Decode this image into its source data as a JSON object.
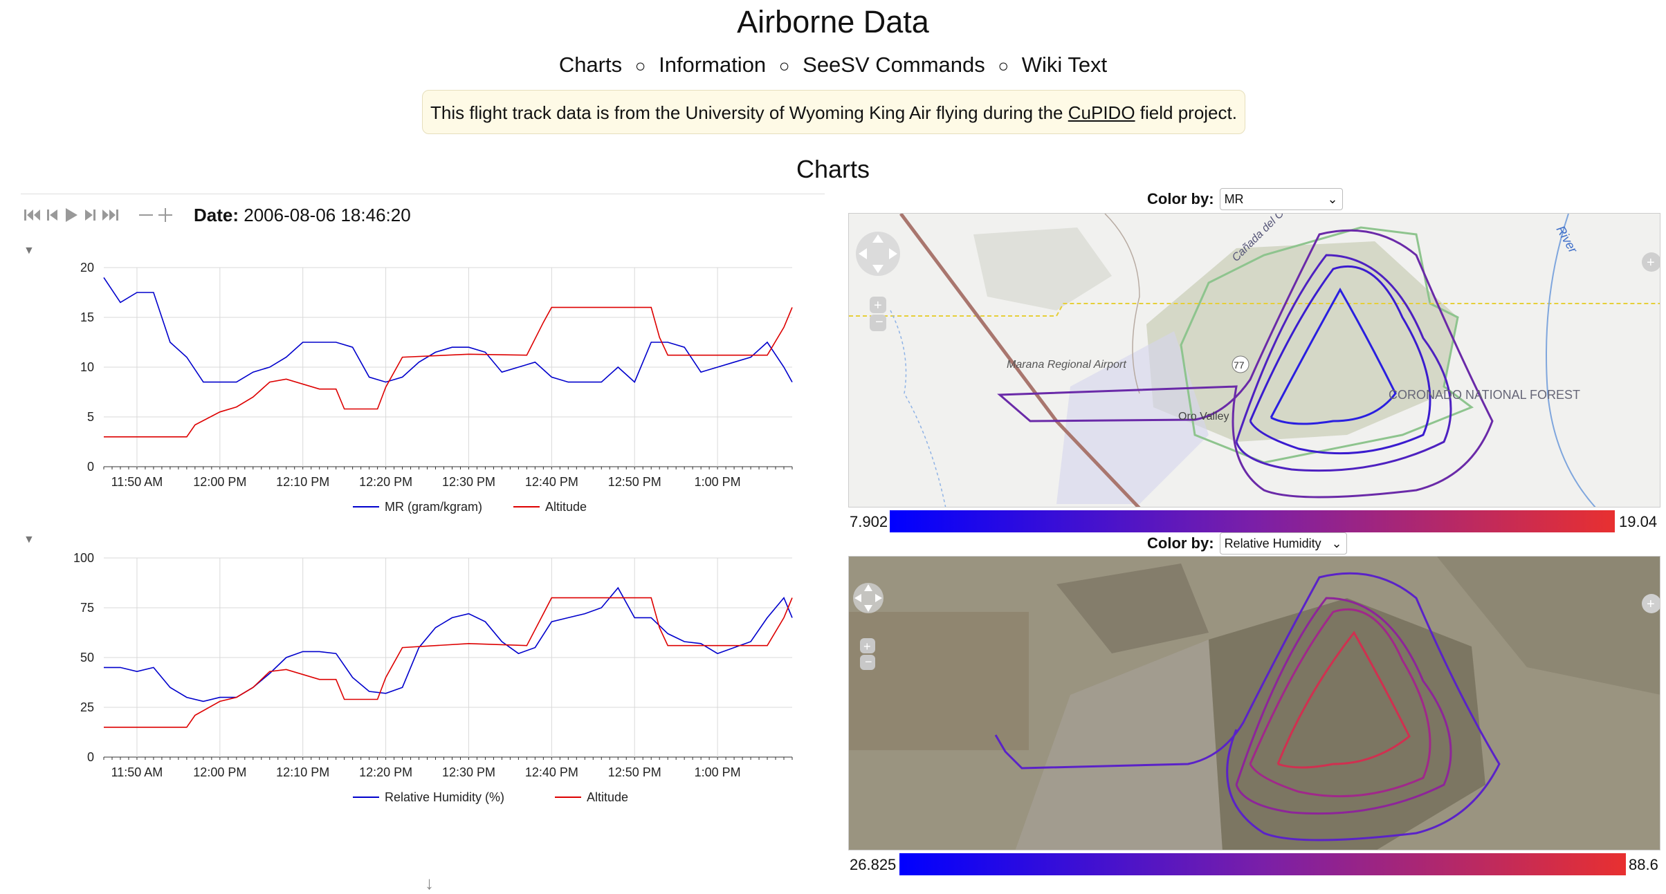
{
  "page": {
    "title": "Airborne Data",
    "nav": [
      "Charts",
      "Information",
      "SeeSV Commands",
      "Wiki Text"
    ],
    "nav_separator": "○",
    "notice": {
      "prefix": "This flight track data is from the University of Wyoming King Air flying during the",
      "link": "CuPIDO",
      "suffix": "field project."
    },
    "section_title": "Charts"
  },
  "controls": {
    "icons": [
      "skip-to-start-icon",
      "step-back-icon",
      "play-icon",
      "step-forward-icon",
      "skip-to-end-icon",
      "zoom-out-icon",
      "zoom-in-icon"
    ],
    "date_label": "Date:",
    "date_value": "2006-08-06 18:46:20"
  },
  "chart_data": [
    {
      "type": "line",
      "x_ticks": [
        "11:50 AM",
        "12:00 PM",
        "12:10 PM",
        "12:20 PM",
        "12:30 PM",
        "12:40 PM",
        "12:50 PM",
        "1:00 PM"
      ],
      "y_ticks": [
        "0",
        "5",
        "10",
        "15",
        "20"
      ],
      "ylim": [
        0,
        20
      ],
      "grid": true,
      "legend_position": "bottom",
      "series": [
        {
          "name": "MR (gram/kgram)",
          "color": "#0000cc",
          "x": [
            "11:46",
            "11:48",
            "11:50",
            "11:52",
            "11:54",
            "11:56",
            "11:58",
            "12:00",
            "12:02",
            "12:04",
            "12:06",
            "12:08",
            "12:10",
            "12:12",
            "12:14",
            "12:16",
            "12:18",
            "12:20",
            "12:22",
            "12:24",
            "12:26",
            "12:28",
            "12:30",
            "12:32",
            "12:34",
            "12:36",
            "12:38",
            "12:40",
            "12:42",
            "12:44",
            "12:46",
            "12:48",
            "12:50",
            "12:52",
            "12:54",
            "12:56",
            "12:58",
            "13:00",
            "13:02",
            "13:04",
            "13:06",
            "13:08",
            "13:09"
          ],
          "y": [
            19,
            16.5,
            17.5,
            17.5,
            12.5,
            11,
            8.5,
            8.5,
            8.5,
            9.5,
            10,
            11,
            12.5,
            12.5,
            12.5,
            12,
            9,
            8.5,
            9,
            10.5,
            11.5,
            12,
            12,
            11.5,
            9.5,
            10,
            10.5,
            9,
            8.5,
            8.5,
            8.5,
            10,
            8.5,
            12.5,
            12.5,
            12,
            9.5,
            10,
            10.5,
            11,
            12.5,
            10,
            8.5
          ]
        },
        {
          "name": "Altitude",
          "color": "#dd0000",
          "x": [
            "11:46",
            "11:56",
            "11:57",
            "12:00",
            "12:02",
            "12:04",
            "12:06",
            "12:08",
            "12:12",
            "12:14",
            "12:15",
            "12:19",
            "12:20",
            "12:22",
            "12:30",
            "12:37",
            "12:39",
            "12:40",
            "12:46",
            "12:50",
            "12:52",
            "12:53",
            "12:54",
            "13:00",
            "13:04",
            "13:06",
            "13:08",
            "13:09"
          ],
          "y": [
            3,
            3,
            4.2,
            5.5,
            6,
            7,
            8.5,
            8.8,
            7.8,
            7.8,
            5.8,
            5.8,
            8,
            11,
            11.3,
            11.2,
            14.5,
            16,
            16,
            16,
            16,
            13,
            11.2,
            11.2,
            11.2,
            11.2,
            14,
            16
          ]
        }
      ]
    },
    {
      "type": "line",
      "x_ticks": [
        "11:50 AM",
        "12:00 PM",
        "12:10 PM",
        "12:20 PM",
        "12:30 PM",
        "12:40 PM",
        "12:50 PM",
        "1:00 PM"
      ],
      "y_ticks": [
        "0",
        "25",
        "50",
        "75",
        "100"
      ],
      "ylim": [
        0,
        100
      ],
      "grid": true,
      "legend_position": "bottom",
      "series": [
        {
          "name": "Relative Humidity (%)",
          "color": "#0000cc",
          "x": [
            "11:46",
            "11:48",
            "11:50",
            "11:52",
            "11:54",
            "11:56",
            "11:58",
            "12:00",
            "12:02",
            "12:04",
            "12:06",
            "12:08",
            "12:10",
            "12:12",
            "12:14",
            "12:16",
            "12:18",
            "12:20",
            "12:22",
            "12:24",
            "12:26",
            "12:28",
            "12:30",
            "12:32",
            "12:34",
            "12:36",
            "12:38",
            "12:40",
            "12:42",
            "12:44",
            "12:46",
            "12:48",
            "12:50",
            "12:52",
            "12:54",
            "12:56",
            "12:58",
            "13:00",
            "13:02",
            "13:04",
            "13:06",
            "13:08",
            "13:09"
          ],
          "y": [
            45,
            45,
            43,
            45,
            35,
            30,
            28,
            30,
            30,
            35,
            42,
            50,
            53,
            53,
            52,
            40,
            33,
            32,
            35,
            55,
            65,
            70,
            72,
            68,
            58,
            52,
            55,
            68,
            70,
            72,
            75,
            85,
            70,
            70,
            62,
            58,
            57,
            52,
            55,
            58,
            70,
            80,
            70
          ]
        },
        {
          "name": "Altitude",
          "color": "#dd0000",
          "x": [
            "11:46",
            "11:56",
            "11:57",
            "12:00",
            "12:02",
            "12:04",
            "12:06",
            "12:08",
            "12:12",
            "12:14",
            "12:15",
            "12:19",
            "12:20",
            "12:22",
            "12:30",
            "12:37",
            "12:39",
            "12:40",
            "12:46",
            "12:50",
            "12:52",
            "12:53",
            "12:54",
            "13:00",
            "13:04",
            "13:06",
            "13:08",
            "13:09"
          ],
          "y": [
            15,
            15,
            21,
            28,
            30,
            35,
            43,
            44,
            39,
            39,
            29,
            29,
            40,
            55,
            57,
            56,
            72,
            80,
            80,
            80,
            80,
            65,
            56,
            56,
            56,
            56,
            70,
            80
          ]
        }
      ]
    }
  ],
  "maps": [
    {
      "color_by_label": "Color by:",
      "color_by_value": "MR",
      "scale_min": "7.902",
      "scale_max": "19.04",
      "basemap": "terrain",
      "labels": [
        "Marana Regional Airport",
        "Oro Valley",
        "CORONADO NATIONAL FOREST",
        "River",
        "77",
        "Cañada del Oro"
      ],
      "colors": {
        "low": "#0000ff",
        "mid": "#7a1fa8",
        "high": "#e83030"
      }
    },
    {
      "color_by_label": "Color by:",
      "color_by_value": "Relative Humidity",
      "scale_min": "26.825",
      "scale_max": "88.6",
      "basemap": "satellite",
      "colors": {
        "low": "#0000ff",
        "mid": "#7a1fa8",
        "high": "#e83030"
      }
    }
  ]
}
